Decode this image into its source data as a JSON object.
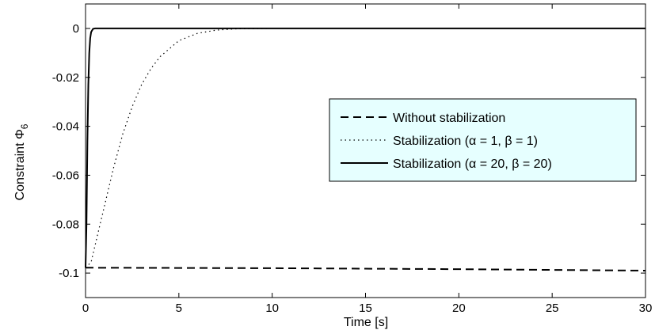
{
  "chart_data": {
    "type": "line",
    "title": "",
    "xlabel": "Time [s]",
    "ylabel_main": "Constraint Φ",
    "ylabel_sub": "6",
    "xlim": [
      0,
      30
    ],
    "ylim": [
      -0.11,
      0.01
    ],
    "xticks": [
      0,
      5,
      10,
      15,
      20,
      25,
      30
    ],
    "yticks": [
      0,
      -0.02,
      -0.04,
      -0.06,
      -0.08,
      -0.1
    ],
    "xtick_labels": [
      "0",
      "5",
      "10",
      "15",
      "20",
      "25",
      "30"
    ],
    "ytick_labels": [
      "0",
      "-0.02",
      "-0.04",
      "-0.06",
      "-0.08",
      "-0.1"
    ],
    "grid": false,
    "legend_position": "center-right",
    "legend_background": "#e6ffff",
    "series": [
      {
        "name": "Without stabilization",
        "style": "dashed",
        "color": "#000000",
        "x": [
          0,
          5,
          10,
          15,
          20,
          25,
          30
        ],
        "y": [
          -0.0978,
          -0.0979,
          -0.098,
          -0.0982,
          -0.0984,
          -0.0987,
          -0.099
        ]
      },
      {
        "name": "Stabilization (α = 1, β = 1)",
        "style": "dotted",
        "color": "#000000",
        "x": [
          0,
          0.3,
          0.5,
          1,
          1.5,
          2,
          2.5,
          3,
          3.5,
          4,
          5,
          6,
          7,
          8,
          10,
          30
        ],
        "y": [
          -0.0978,
          -0.0955,
          -0.089,
          -0.073,
          -0.057,
          -0.043,
          -0.032,
          -0.023,
          -0.0165,
          -0.0115,
          -0.005,
          -0.002,
          -0.0007,
          -0.0002,
          0,
          0
        ]
      },
      {
        "name": "Stabilization (α = 20, β = 20)",
        "style": "solid",
        "color": "#000000",
        "x": [
          0,
          0.05,
          0.1,
          0.15,
          0.2,
          0.25,
          0.3,
          0.4,
          0.5,
          30
        ],
        "y": [
          -0.0978,
          -0.08,
          -0.046,
          -0.023,
          -0.01,
          -0.004,
          -0.0015,
          -0.0002,
          0,
          0
        ]
      }
    ]
  }
}
